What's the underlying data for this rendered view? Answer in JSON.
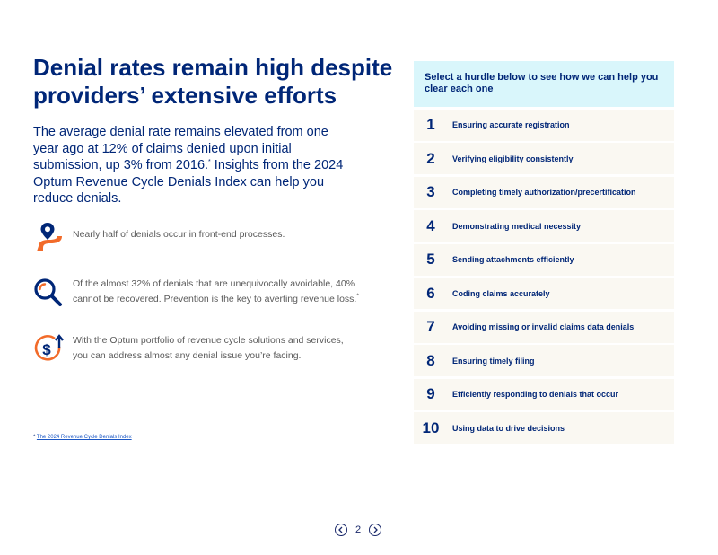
{
  "page": {
    "title": "Denial rates remain high despite providers’ extensive efforts",
    "intro": {
      "before": "The average denial rate remains elevated from one year ago at 12% of claims denied upon initial submission, up 3% from 2016.",
      "sup": "*",
      "after": " Insights from the 2024 Optum Revenue Cycle Denials Index can help you reduce denials."
    },
    "features": [
      {
        "icon": "location-pin-road-icon",
        "text": "Nearly half of denials occur in front-end processes."
      },
      {
        "icon": "magnifying-glass-icon",
        "text": "Of the almost 32% of denials that are unequivocally avoidable, 40% cannot be recovered. Prevention is the key to averting revenue loss.",
        "sup": "*"
      },
      {
        "icon": "dollar-up-arrow-icon",
        "text": "With the Optum portfolio of revenue cycle solutions and services, you can address almost any denial issue you’re facing."
      }
    ],
    "footnote": {
      "mark": "*",
      "link_text": "The 2024 Revenue Cycle Denials Index"
    }
  },
  "panel": {
    "header": "Select a hurdle below to see how we can help you clear each one",
    "items": [
      {
        "num": "1",
        "label": "Ensuring accurate registration"
      },
      {
        "num": "2",
        "label": "Verifying eligibility consistently"
      },
      {
        "num": "3",
        "label": "Completing timely authorization/precertification"
      },
      {
        "num": "4",
        "label": "Demonstrating medical necessity"
      },
      {
        "num": "5",
        "label": "Sending attachments efficiently"
      },
      {
        "num": "6",
        "label": "Coding claims accurately"
      },
      {
        "num": "7",
        "label": "Avoiding missing or invalid claims data denials"
      },
      {
        "num": "8",
        "label": "Ensuring timely filing"
      },
      {
        "num": "9",
        "label": "Efficiently responding to denials that occur"
      },
      {
        "num": "10",
        "label": "Using data to drive decisions"
      }
    ]
  },
  "pager": {
    "page_number": "2"
  },
  "colors": {
    "navy": "#002677",
    "orange": "#f26b2a",
    "panel_header_bg": "#d9f6fb",
    "item_bg": "#faf8f2"
  }
}
